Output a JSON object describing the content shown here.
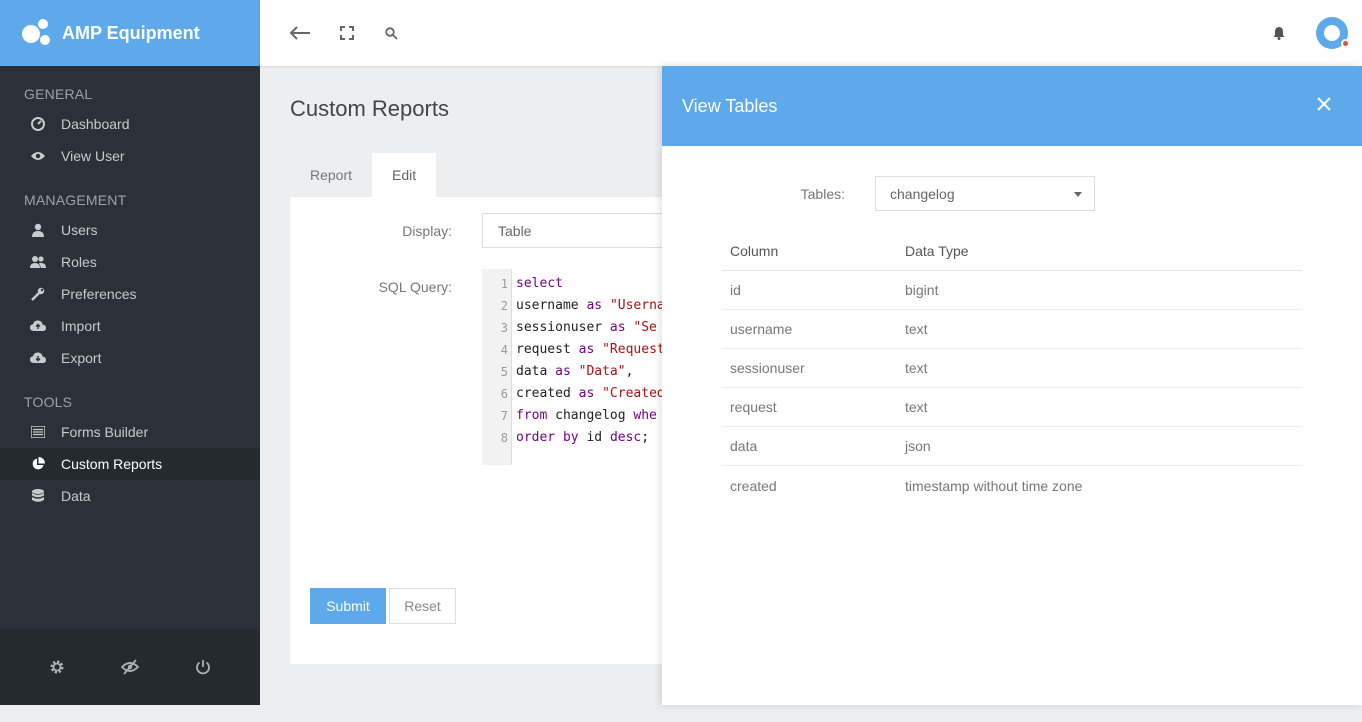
{
  "app": {
    "brand": "AMP Equipment"
  },
  "sidebar": {
    "sections": [
      {
        "title": "GENERAL",
        "items": [
          {
            "label": "Dashboard",
            "icon": "dashboard-icon"
          },
          {
            "label": "View User",
            "icon": "eye-icon"
          }
        ]
      },
      {
        "title": "MANAGEMENT",
        "items": [
          {
            "label": "Users",
            "icon": "user-icon"
          },
          {
            "label": "Roles",
            "icon": "users-icon"
          },
          {
            "label": "Preferences",
            "icon": "wrench-icon"
          },
          {
            "label": "Import",
            "icon": "cloud-upload-icon"
          },
          {
            "label": "Export",
            "icon": "cloud-download-icon"
          }
        ]
      },
      {
        "title": "TOOLS",
        "items": [
          {
            "label": "Forms Builder",
            "icon": "list-icon"
          },
          {
            "label": "Custom Reports",
            "icon": "pie-chart-icon",
            "active": true
          },
          {
            "label": "Data",
            "icon": "database-icon"
          }
        ]
      }
    ]
  },
  "page": {
    "title": "Custom Reports",
    "tabs": [
      {
        "label": "Report"
      },
      {
        "label": "Edit",
        "active": true
      }
    ],
    "form": {
      "display_label": "Display:",
      "display_value": "Table",
      "sql_label": "SQL Query:",
      "code_lines": [
        {
          "n": "1",
          "text": "select"
        },
        {
          "n": "2",
          "text": "username as \"Userna"
        },
        {
          "n": "3",
          "text": "sessionuser as \"Se"
        },
        {
          "n": "4",
          "text": "request as \"Request"
        },
        {
          "n": "5",
          "text": "data as \"Data\","
        },
        {
          "n": "6",
          "text": "created as \"Created"
        },
        {
          "n": "7",
          "text": "from changelog whe"
        },
        {
          "n": "8",
          "text": "order by id desc;"
        }
      ],
      "submit_label": "Submit",
      "reset_label": "Reset"
    }
  },
  "panel": {
    "title": "View Tables",
    "tables_label": "Tables:",
    "tables_value": "changelog",
    "headers": [
      "Column",
      "Data Type"
    ],
    "rows": [
      [
        "id",
        "bigint"
      ],
      [
        "username",
        "text"
      ],
      [
        "sessionuser",
        "text"
      ],
      [
        "request",
        "text"
      ],
      [
        "data",
        "json"
      ],
      [
        "created",
        "timestamp without time zone"
      ]
    ]
  },
  "colors": {
    "accent": "#5da9e9",
    "sidebar": "#2a3138"
  }
}
